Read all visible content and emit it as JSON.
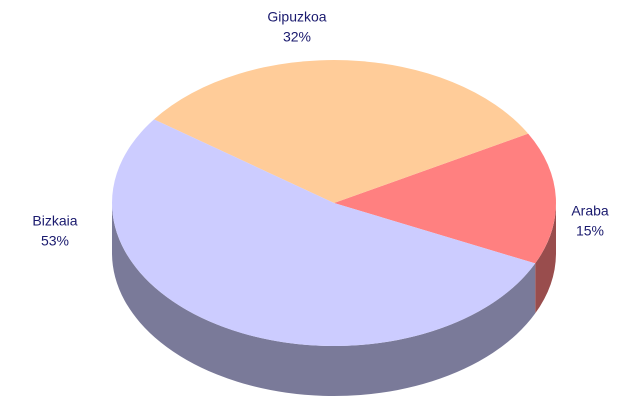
{
  "chart_data": {
    "type": "pie",
    "categories": [
      "Araba",
      "Gipuzkoa",
      "Bizkaia"
    ],
    "values": [
      15,
      32,
      53
    ],
    "value_labels": [
      "15%",
      "32%",
      "53%"
    ],
    "colors": [
      "#ff8080",
      "#ffcc99",
      "#ccccff"
    ]
  }
}
